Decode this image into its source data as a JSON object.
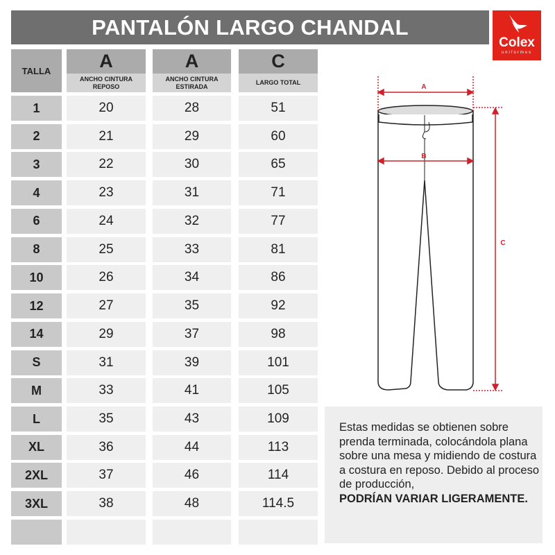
{
  "title": "PANTALÓN LARGO CHANDAL",
  "logo": {
    "name": "Colex",
    "sub": "uniformes"
  },
  "table": {
    "headers": [
      {
        "letter": "",
        "label": "TALLA"
      },
      {
        "letter": "A",
        "label": "ANCHO CINTURA REPOSO"
      },
      {
        "letter": "A",
        "label": "ANCHO CINTURA ESTIRADA"
      },
      {
        "letter": "C",
        "label": "LARGO TOTAL"
      }
    ],
    "rows": [
      [
        "1",
        "20",
        "28",
        "51"
      ],
      [
        "2",
        "21",
        "29",
        "60"
      ],
      [
        "3",
        "22",
        "30",
        "65"
      ],
      [
        "4",
        "23",
        "31",
        "71"
      ],
      [
        "6",
        "24",
        "32",
        "77"
      ],
      [
        "8",
        "25",
        "33",
        "81"
      ],
      [
        "10",
        "26",
        "34",
        "86"
      ],
      [
        "12",
        "27",
        "35",
        "92"
      ],
      [
        "14",
        "29",
        "37",
        "98"
      ],
      [
        "S",
        "31",
        "39",
        "101"
      ],
      [
        "M",
        "33",
        "41",
        "105"
      ],
      [
        "L",
        "35",
        "43",
        "109"
      ],
      [
        "XL",
        "36",
        "44",
        "113"
      ],
      [
        "2XL",
        "37",
        "46",
        "114"
      ],
      [
        "3XL",
        "38",
        "48",
        "114.5"
      ],
      [
        "",
        "",
        "",
        ""
      ]
    ]
  },
  "diagram": {
    "labels": {
      "a": "A",
      "b": "B",
      "c": "C"
    },
    "accent": "#d0202a"
  },
  "note": {
    "text": "Estas medidas se obtienen sobre prenda terminada, colocándola plana sobre una mesa y midiendo de costura a costura en reposo. Debido al proceso de producción,",
    "bold": "PODRÍAN VARIAR LIGERAMENTE."
  },
  "colors": {
    "title_bg": "#6f6f6f",
    "logo_bg": "#e2231a"
  }
}
